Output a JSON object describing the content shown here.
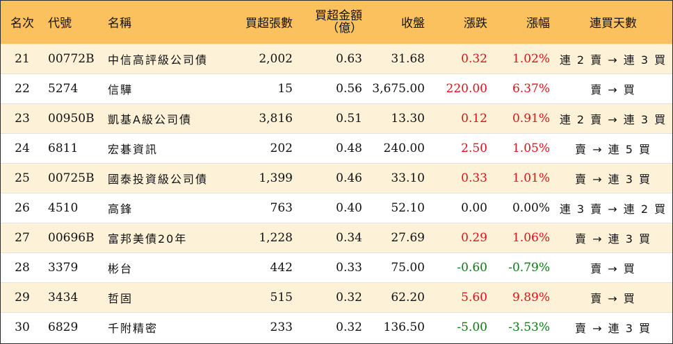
{
  "headers": {
    "rank": "名次",
    "code": "代號",
    "name": "名稱",
    "net_buy_lots": "買超張數",
    "net_buy_amount_line1": "買超金額",
    "net_buy_amount_line2": "（億）",
    "close": "收盤",
    "change": "漲跌",
    "change_pct": "漲幅",
    "consecutive_days": "連買天數"
  },
  "colors": {
    "header_bg": "#fcc15f",
    "row_alt_bg": "#fdf2d8",
    "up": "#e0101a",
    "down": "#0a7a12",
    "flat": "#111111"
  },
  "rows": [
    {
      "rank": "21",
      "code": "00772B",
      "name": "中信高評級公司債",
      "lots": "2,002",
      "amount": "0.63",
      "close": "31.68",
      "change": "0.32",
      "pct": "1.02%",
      "days": "連 2 賣 → 連 3 買",
      "dir": "up"
    },
    {
      "rank": "22",
      "code": "5274",
      "name": "信驊",
      "lots": "15",
      "amount": "0.56",
      "close": "3,675.00",
      "change": "220.00",
      "pct": "6.37%",
      "days": "賣 → 買",
      "dir": "up"
    },
    {
      "rank": "23",
      "code": "00950B",
      "name": "凱基A級公司債",
      "lots": "3,816",
      "amount": "0.51",
      "close": "13.30",
      "change": "0.12",
      "pct": "0.91%",
      "days": "連 2 賣 → 連 3 買",
      "dir": "up"
    },
    {
      "rank": "24",
      "code": "6811",
      "name": "宏碁資訊",
      "lots": "202",
      "amount": "0.48",
      "close": "240.00",
      "change": "2.50",
      "pct": "1.05%",
      "days": "賣 → 連 5 買",
      "dir": "up"
    },
    {
      "rank": "25",
      "code": "00725B",
      "name": "國泰投資級公司債",
      "lots": "1,399",
      "amount": "0.46",
      "close": "33.10",
      "change": "0.33",
      "pct": "1.01%",
      "days": "賣 → 連 3 買",
      "dir": "up"
    },
    {
      "rank": "26",
      "code": "4510",
      "name": "高鋒",
      "lots": "763",
      "amount": "0.40",
      "close": "52.10",
      "change": "0.00",
      "pct": "0.00%",
      "days": "連 3 賣 → 連 2 買",
      "dir": "flat"
    },
    {
      "rank": "27",
      "code": "00696B",
      "name": "富邦美債20年",
      "lots": "1,228",
      "amount": "0.34",
      "close": "27.69",
      "change": "0.29",
      "pct": "1.06%",
      "days": "賣 → 連 3 買",
      "dir": "up"
    },
    {
      "rank": "28",
      "code": "3379",
      "name": "彬台",
      "lots": "442",
      "amount": "0.33",
      "close": "75.00",
      "change": "-0.60",
      "pct": "-0.79%",
      "days": "賣 → 買",
      "dir": "down"
    },
    {
      "rank": "29",
      "code": "3434",
      "name": "哲固",
      "lots": "515",
      "amount": "0.32",
      "close": "62.20",
      "change": "5.60",
      "pct": "9.89%",
      "days": "賣 → 買",
      "dir": "up"
    },
    {
      "rank": "30",
      "code": "6829",
      "name": "千附精密",
      "lots": "233",
      "amount": "0.32",
      "close": "136.50",
      "change": "-5.00",
      "pct": "-3.53%",
      "days": "賣 → 連 3 買",
      "dir": "down"
    }
  ]
}
